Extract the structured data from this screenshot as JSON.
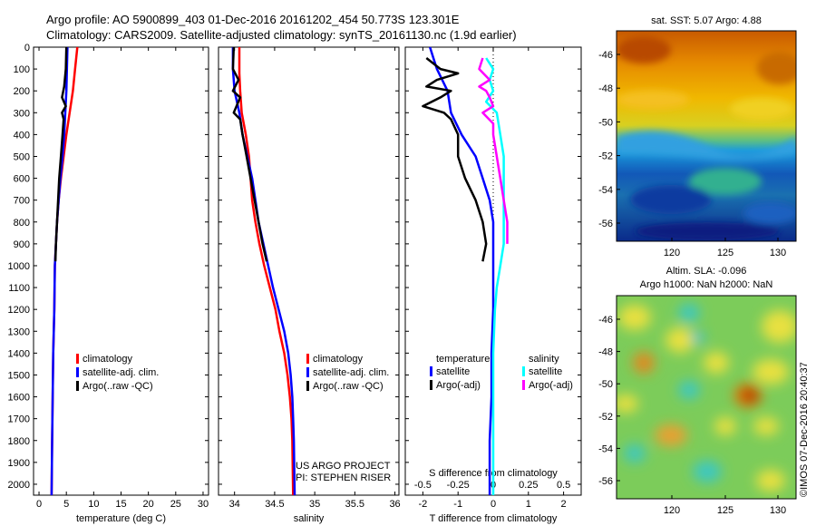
{
  "header": {
    "line1": "Argo profile: AO 5900899_403 01-Dec-2016 20161202_454 50.773S 123.301E",
    "line2": "Climatology: CARS2009. Satellite-adjusted climatology: synTS_20161130.nc (1.9d earlier)"
  },
  "colors": {
    "climatology": "#ff0000",
    "satellite": "#0000ff",
    "argo": "#000000",
    "satellite_s": "#00ffff",
    "argo_s": "#ff00ff"
  },
  "chart_data": [
    {
      "type": "line",
      "xlabel": "temperature (deg C)",
      "xlim": [
        -1,
        31
      ],
      "xticks": [
        0,
        5,
        10,
        15,
        20,
        25,
        30
      ],
      "ylim": [
        2050,
        0
      ],
      "yticks": [
        0,
        100,
        200,
        300,
        400,
        500,
        600,
        700,
        800,
        900,
        1000,
        1100,
        1200,
        1300,
        1400,
        1500,
        1600,
        1700,
        1800,
        1900,
        2000
      ],
      "legend": [
        "climatology",
        "satellite-adj. clim.",
        "Argo(..raw -QC)"
      ],
      "series": [
        {
          "name": "climatology",
          "color": "#ff0000",
          "points": [
            [
              7.0,
              0
            ],
            [
              6.6,
              100
            ],
            [
              6.2,
              200
            ],
            [
              5.6,
              300
            ],
            [
              5.0,
              400
            ],
            [
              4.5,
              500
            ],
            [
              4.0,
              600
            ],
            [
              3.6,
              700
            ],
            [
              3.3,
              800
            ],
            [
              3.1,
              900
            ],
            [
              2.9,
              1000
            ],
            [
              2.8,
              1200
            ],
            [
              2.6,
              1400
            ],
            [
              2.5,
              1600
            ],
            [
              2.4,
              1800
            ],
            [
              2.3,
              2050
            ]
          ]
        },
        {
          "name": "satellite-adj. clim.",
          "color": "#0000ff",
          "points": [
            [
              5.2,
              0
            ],
            [
              5.1,
              100
            ],
            [
              5.0,
              200
            ],
            [
              4.8,
              300
            ],
            [
              4.6,
              400
            ],
            [
              4.3,
              500
            ],
            [
              3.9,
              600
            ],
            [
              3.6,
              700
            ],
            [
              3.3,
              800
            ],
            [
              3.1,
              900
            ],
            [
              2.9,
              1000
            ],
            [
              2.8,
              1200
            ],
            [
              2.6,
              1400
            ],
            [
              2.5,
              1600
            ],
            [
              2.4,
              1800
            ],
            [
              2.3,
              2050
            ]
          ]
        },
        {
          "name": "Argo(..raw -QC)",
          "color": "#000000",
          "points": [
            [
              5.0,
              0
            ],
            [
              4.9,
              100
            ],
            [
              4.6,
              180
            ],
            [
              4.2,
              230
            ],
            [
              4.9,
              270
            ],
            [
              4.2,
              300
            ],
            [
              4.5,
              330
            ],
            [
              4.3,
              400
            ],
            [
              4.0,
              500
            ],
            [
              3.7,
              600
            ],
            [
              3.5,
              700
            ],
            [
              3.3,
              800
            ],
            [
              3.1,
              900
            ],
            [
              3.0,
              980
            ]
          ]
        }
      ]
    },
    {
      "type": "line",
      "xlabel": "salinity",
      "xlim": [
        33.8,
        36.05
      ],
      "xticks": [
        34,
        34.5,
        35,
        35.5,
        36
      ],
      "ylim": [
        2050,
        0
      ],
      "legend": [
        "climatology",
        "satellite-adj. clim.",
        "Argo(..raw -QC)"
      ],
      "series": [
        {
          "name": "climatology",
          "color": "#ff0000",
          "points": [
            [
              34.06,
              0
            ],
            [
              34.06,
              120
            ],
            [
              34.07,
              200
            ],
            [
              34.09,
              300
            ],
            [
              34.14,
              400
            ],
            [
              34.18,
              500
            ],
            [
              34.2,
              600
            ],
            [
              34.22,
              700
            ],
            [
              34.26,
              800
            ],
            [
              34.31,
              900
            ],
            [
              34.37,
              1000
            ],
            [
              34.44,
              1100
            ],
            [
              34.51,
              1200
            ],
            [
              34.56,
              1300
            ],
            [
              34.62,
              1400
            ],
            [
              34.66,
              1500
            ],
            [
              34.69,
              1600
            ],
            [
              34.71,
              1700
            ],
            [
              34.72,
              1800
            ],
            [
              34.73,
              2050
            ]
          ]
        },
        {
          "name": "satellite-adj. clim.",
          "color": "#0000ff",
          "points": [
            [
              33.98,
              0
            ],
            [
              33.98,
              100
            ],
            [
              34.0,
              200
            ],
            [
              34.06,
              300
            ],
            [
              34.1,
              400
            ],
            [
              34.16,
              500
            ],
            [
              34.22,
              600
            ],
            [
              34.26,
              700
            ],
            [
              34.3,
              800
            ],
            [
              34.36,
              900
            ],
            [
              34.42,
              1000
            ],
            [
              34.48,
              1100
            ],
            [
              34.55,
              1200
            ],
            [
              34.62,
              1300
            ],
            [
              34.67,
              1400
            ],
            [
              34.7,
              1500
            ],
            [
              34.72,
              1600
            ],
            [
              34.73,
              1700
            ],
            [
              34.74,
              1800
            ],
            [
              34.75,
              2050
            ]
          ]
        },
        {
          "name": "Argo(..raw -QC)",
          "color": "#000000",
          "points": [
            [
              33.99,
              0
            ],
            [
              33.98,
              100
            ],
            [
              34.05,
              150
            ],
            [
              33.98,
              200
            ],
            [
              34.07,
              230
            ],
            [
              33.99,
              300
            ],
            [
              34.07,
              330
            ],
            [
              34.1,
              400
            ],
            [
              34.15,
              500
            ],
            [
              34.2,
              600
            ],
            [
              34.25,
              700
            ],
            [
              34.3,
              800
            ],
            [
              34.35,
              900
            ],
            [
              34.4,
              980
            ]
          ]
        }
      ]
    },
    {
      "type": "line",
      "xlabel": "T difference from climatology",
      "top_label": "S difference from climatology",
      "xlim": [
        -2.5,
        2.5
      ],
      "xticks": [
        -2,
        -1,
        0,
        1,
        2
      ],
      "top_ticks": [
        {
          "value": -0.5,
          "pos": -2
        },
        {
          "value": -0.25,
          "pos": -1
        },
        {
          "value": 0,
          "pos": 0
        },
        {
          "value": 0.25,
          "pos": 1
        },
        {
          "value": 0.5,
          "pos": 2
        }
      ],
      "top_tick_labels": [
        "-0.5",
        "-0.25",
        "0",
        "0.25",
        "0.5"
      ],
      "ylim": [
        2050,
        0
      ],
      "legend_titles": [
        "temperature",
        "salinity"
      ],
      "legend": [
        "satellite",
        "Argo(-adj)",
        "satellite",
        "Argo(-adj)"
      ],
      "series": [
        {
          "name": "temperature satellite",
          "color": "#0000ff",
          "points": [
            [
              -1.8,
              0
            ],
            [
              -1.7,
              50
            ],
            [
              -1.6,
              100
            ],
            [
              -1.3,
              200
            ],
            [
              -1.2,
              300
            ],
            [
              -0.9,
              400
            ],
            [
              -0.5,
              500
            ],
            [
              -0.3,
              600
            ],
            [
              -0.1,
              700
            ],
            [
              0.0,
              800
            ],
            [
              0.0,
              900
            ],
            [
              0.0,
              1000
            ],
            [
              0.0,
              1100
            ],
            [
              0.0,
              1200
            ],
            [
              -0.05,
              1400
            ],
            [
              -0.05,
              1600
            ],
            [
              -0.1,
              1800
            ],
            [
              -0.1,
              2050
            ]
          ]
        },
        {
          "name": "temperature Argo(-adj)",
          "color": "#000000",
          "points": [
            [
              -1.9,
              50
            ],
            [
              -1.5,
              100
            ],
            [
              -1.0,
              120
            ],
            [
              -1.6,
              150
            ],
            [
              -1.9,
              180
            ],
            [
              -1.2,
              200
            ],
            [
              -1.5,
              230
            ],
            [
              -2.0,
              270
            ],
            [
              -1.4,
              300
            ],
            [
              -1.2,
              330
            ],
            [
              -1.0,
              400
            ],
            [
              -1.0,
              500
            ],
            [
              -0.8,
              600
            ],
            [
              -0.5,
              700
            ],
            [
              -0.3,
              800
            ],
            [
              -0.2,
              900
            ],
            [
              -0.3,
              980
            ]
          ]
        },
        {
          "name": "salinity satellite",
          "color": "#00ffff",
          "points": [
            [
              -0.2,
              50
            ],
            [
              0.0,
              100
            ],
            [
              -0.1,
              150
            ],
            [
              0.0,
              200
            ],
            [
              -0.2,
              250
            ],
            [
              0.1,
              300
            ],
            [
              0.2,
              400
            ],
            [
              0.3,
              500
            ],
            [
              0.3,
              600
            ],
            [
              0.3,
              700
            ],
            [
              0.3,
              800
            ],
            [
              0.3,
              900
            ],
            [
              0.2,
              1000
            ],
            [
              0.1,
              1100
            ],
            [
              0.05,
              1200
            ],
            [
              0.0,
              1400
            ],
            [
              0.0,
              1600
            ],
            [
              0.0,
              1800
            ],
            [
              0.0,
              2050
            ]
          ]
        },
        {
          "name": "salinity Argo(-adj)",
          "color": "#ff00ff",
          "points": [
            [
              -0.3,
              50
            ],
            [
              -0.4,
              100
            ],
            [
              -0.1,
              150
            ],
            [
              -0.4,
              180
            ],
            [
              -0.2,
              200
            ],
            [
              -0.1,
              230
            ],
            [
              0.0,
              270
            ],
            [
              -0.3,
              300
            ],
            [
              0.0,
              350
            ],
            [
              0.0,
              400
            ],
            [
              0.1,
              500
            ],
            [
              0.2,
              600
            ],
            [
              0.3,
              700
            ],
            [
              0.4,
              800
            ],
            [
              0.4,
              900
            ]
          ]
        }
      ]
    }
  ],
  "maps": {
    "sst": {
      "title": "sat. SST: 5.07 Argo: 4.88",
      "yticks": [
        "-46",
        "-48",
        "-50",
        "-52",
        "-54",
        "-56"
      ],
      "xticks": [
        "120",
        "125",
        "130"
      ]
    },
    "sla": {
      "title1": "Altim. SLA: -0.096",
      "title2": "Argo h1000: NaN h2000: NaN",
      "yticks": [
        "-46",
        "-48",
        "-50",
        "-52",
        "-54",
        "-56"
      ],
      "xticks": [
        "120",
        "125",
        "130"
      ]
    }
  },
  "credit": {
    "line1": "US ARGO PROJECT",
    "line2": "PI: STEPHEN RISER"
  },
  "watermark": "©IMOS 07-Dec-2016 20:40:37"
}
